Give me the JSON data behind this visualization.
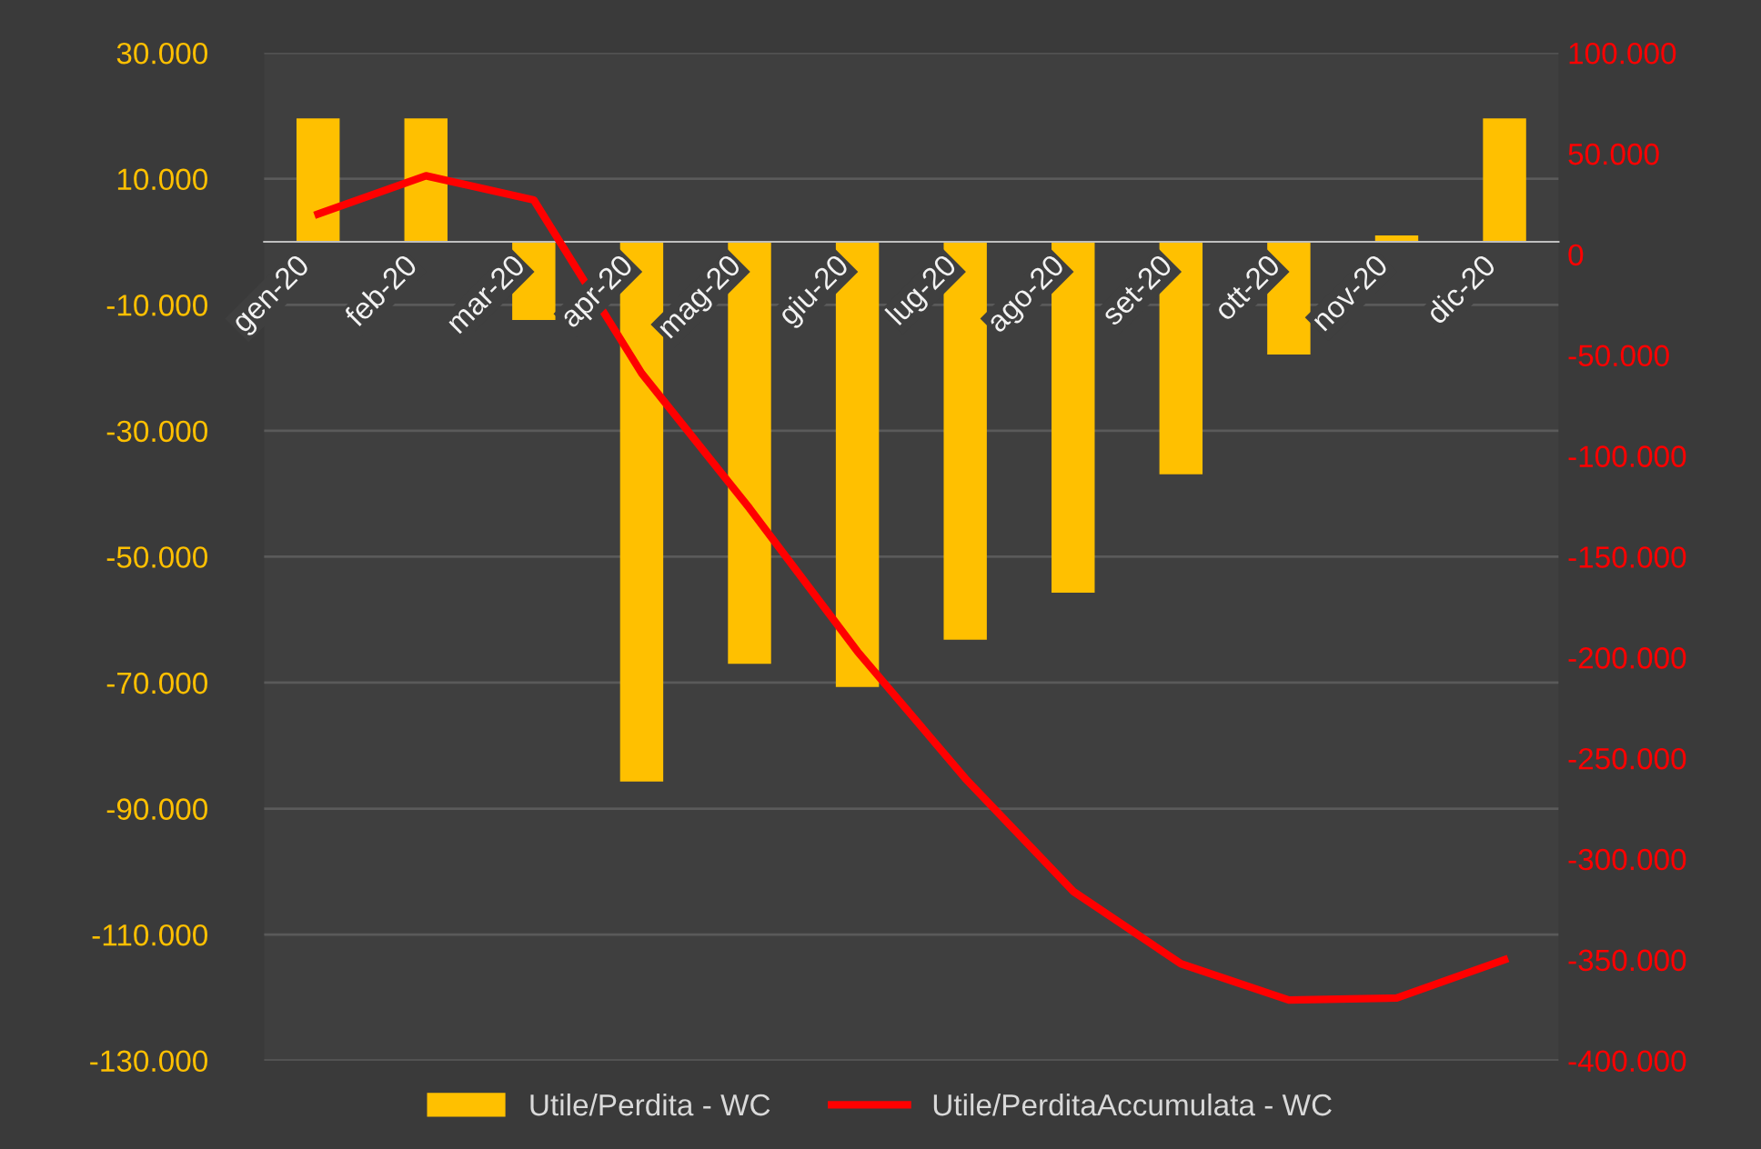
{
  "chart_data": {
    "type": "bar",
    "categories": [
      "gen-20",
      "feb-20",
      "mar-20",
      "apr-20",
      "mag-20",
      "giu-20",
      "lug-20",
      "ago-20",
      "set-20",
      "ott-20",
      "nov-20",
      "dic-20"
    ],
    "series": [
      {
        "name": "Utile/Perdita - WC",
        "color": "#ffc000",
        "values": [
          19600,
          19600,
          -12400,
          -85700,
          -67000,
          -70700,
          -63200,
          -55700,
          -36900,
          -17900,
          1000,
          19600
        ]
      },
      {
        "name": "Utile/PerditaAccumulata - WC",
        "type": "line",
        "axis": "y2",
        "color": "#ff0000",
        "marker": "none",
        "values": [
          20000,
          39000,
          27000,
          -59000,
          -126000,
          -197000,
          -260000,
          -316000,
          -352000,
          -370000,
          -369000,
          -350000
        ]
      }
    ],
    "ylim": [
      -130000,
      30000
    ],
    "yticks": [
      {
        "value": -130000,
        "label": "-130.000"
      },
      {
        "value": -110000,
        "label": "-110.000"
      },
      {
        "value": -90000,
        "label": "-90.000"
      },
      {
        "value": -70000,
        "label": "-70.000"
      },
      {
        "value": -50000,
        "label": "-50.000"
      },
      {
        "value": -30000,
        "label": "-30.000"
      },
      {
        "value": -10000,
        "label": "-10.000"
      },
      {
        "value": 10000,
        "label": "10.000"
      },
      {
        "value": 30000,
        "label": "30.000"
      }
    ],
    "y2lim": [
      -400000,
      100000
    ],
    "y2ticks": [
      {
        "value": -400000,
        "label": "-400.000"
      },
      {
        "value": -350000,
        "label": "-350.000"
      },
      {
        "value": -300000,
        "label": "-300.000"
      },
      {
        "value": -250000,
        "label": "-250.000"
      },
      {
        "value": -200000,
        "label": "-200.000"
      },
      {
        "value": -150000,
        "label": "-150.000"
      },
      {
        "value": -100000,
        "label": "-100.000"
      },
      {
        "value": -50000,
        "label": "-50.000"
      },
      0,
      {
        "value": 50000,
        "label": "50.000"
      },
      {
        "value": 100000,
        "label": "100.000"
      }
    ],
    "grid": "y",
    "legend": "bottom"
  }
}
